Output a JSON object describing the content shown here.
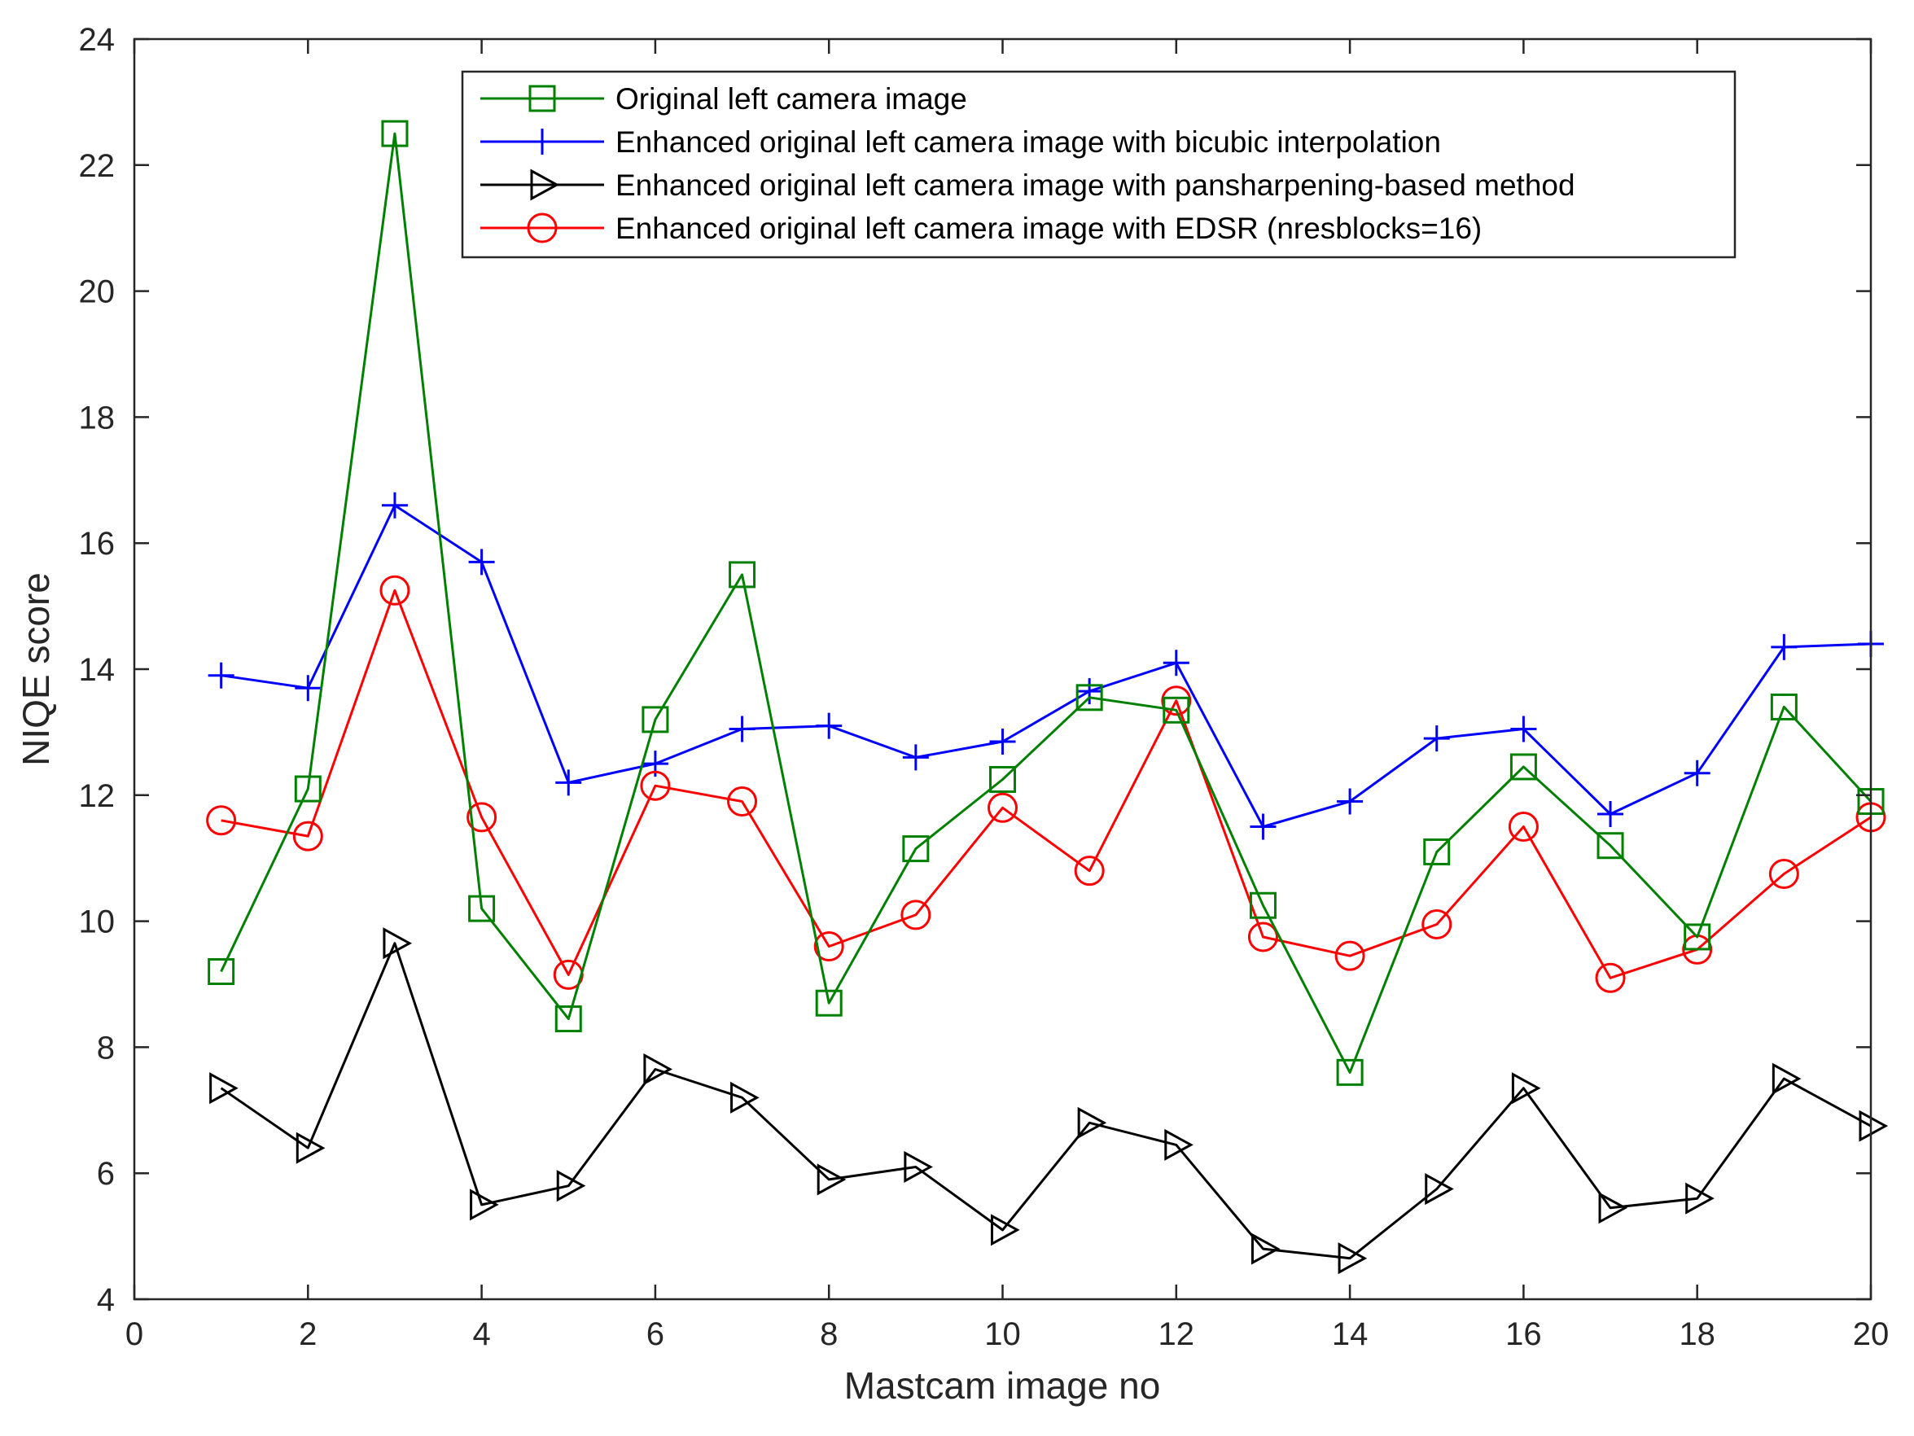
{
  "chart_data": {
    "type": "line",
    "title": "",
    "xlabel": "Mastcam image no",
    "ylabel": "NIQE score",
    "xlim": [
      0,
      20
    ],
    "ylim": [
      4,
      24
    ],
    "xticks": [
      0,
      2,
      4,
      6,
      8,
      10,
      12,
      14,
      16,
      18,
      20
    ],
    "yticks": [
      4,
      6,
      8,
      10,
      12,
      14,
      16,
      18,
      20,
      22,
      24
    ],
    "grid": false,
    "legend_position": "top-center",
    "x": [
      1,
      2,
      3,
      4,
      5,
      6,
      7,
      8,
      9,
      10,
      11,
      12,
      13,
      14,
      15,
      16,
      17,
      18,
      19,
      20
    ],
    "series": [
      {
        "name": "Original left camera image",
        "color": "#008000",
        "marker": "square",
        "values": [
          9.2,
          12.1,
          22.5,
          10.2,
          8.45,
          13.2,
          15.5,
          8.7,
          11.15,
          12.25,
          13.55,
          13.35,
          10.25,
          7.6,
          11.1,
          12.45,
          11.2,
          9.75,
          13.4,
          11.9
        ]
      },
      {
        "name": "Enhanced original left camera image with bicubic interpolation",
        "color": "#0000ff",
        "marker": "plus",
        "values": [
          13.9,
          13.7,
          16.6,
          15.7,
          12.2,
          12.5,
          13.05,
          13.1,
          12.6,
          12.85,
          13.65,
          14.1,
          11.5,
          11.9,
          12.9,
          13.05,
          11.7,
          12.35,
          14.35,
          14.4
        ]
      },
      {
        "name": "Enhanced original left camera image with pansharpening-based method",
        "color": "#000000",
        "marker": "triangle-right",
        "values": [
          7.35,
          6.4,
          9.65,
          5.5,
          5.8,
          7.65,
          7.2,
          5.9,
          6.1,
          5.1,
          6.8,
          6.45,
          4.8,
          4.65,
          5.75,
          7.35,
          5.45,
          5.6,
          7.5,
          6.75
        ]
      },
      {
        "name": "Enhanced original left camera image with EDSR (nresblocks=16)",
        "color": "#ff0000",
        "marker": "circle",
        "values": [
          11.6,
          11.35,
          15.25,
          11.65,
          9.15,
          12.15,
          11.9,
          9.6,
          10.1,
          11.8,
          10.8,
          13.5,
          9.75,
          9.45,
          9.95,
          11.5,
          9.1,
          9.55,
          10.75,
          11.65
        ]
      }
    ]
  }
}
